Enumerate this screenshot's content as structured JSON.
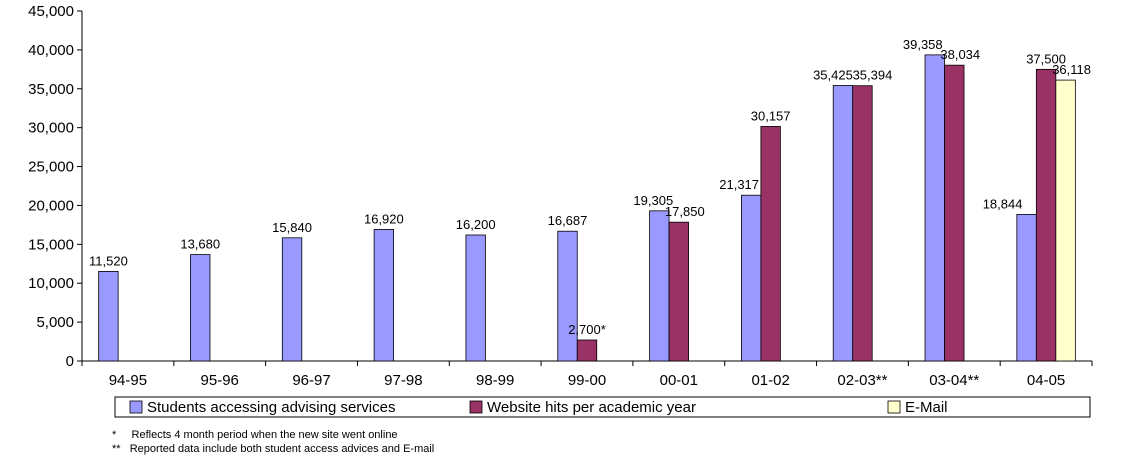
{
  "chart_data": {
    "type": "bar",
    "categories": [
      "94-95",
      "95-96",
      "96-97",
      "97-98",
      "98-99",
      "99-00",
      "00-01",
      "01-02",
      "02-03**",
      "03-04**",
      "04-05"
    ],
    "ylim": [
      0,
      45000
    ],
    "yticks": [
      "0",
      "5,000",
      "10,000",
      "15,000",
      "20,000",
      "25,000",
      "30,000",
      "35,000",
      "40,000",
      "45,000"
    ],
    "legend_position": "bottom",
    "grid": false,
    "series": [
      {
        "name": "Students accessing advising services",
        "color": "#9999ff",
        "values": [
          11520,
          13680,
          15840,
          16920,
          16200,
          16687,
          19305,
          21317,
          35425,
          39358,
          18844
        ],
        "labels": [
          "11,520",
          "13,680",
          "15,840",
          "16,920",
          "16,200",
          "16,687",
          "19,305",
          "21,317",
          "35,425",
          "39,358",
          "18,844"
        ]
      },
      {
        "name": "Website hits per academic year",
        "color": "#993366",
        "values": [
          null,
          null,
          null,
          null,
          null,
          2700,
          17850,
          30157,
          35394,
          38034,
          37500
        ],
        "labels": [
          null,
          null,
          null,
          null,
          null,
          "2,700*",
          "17,850",
          "30,157",
          "35,394",
          "38,034",
          "37,500"
        ]
      },
      {
        "name": "E-Mail",
        "color": "#ffffcc",
        "values": [
          null,
          null,
          null,
          null,
          null,
          null,
          null,
          null,
          null,
          null,
          36118
        ],
        "labels": [
          null,
          null,
          null,
          null,
          null,
          null,
          null,
          null,
          null,
          null,
          "36,118"
        ]
      }
    ]
  },
  "footnotes": [
    "*     Reflects 4 month period when the new site went online",
    "**   Reported data include both student access advices and E-mail"
  ]
}
